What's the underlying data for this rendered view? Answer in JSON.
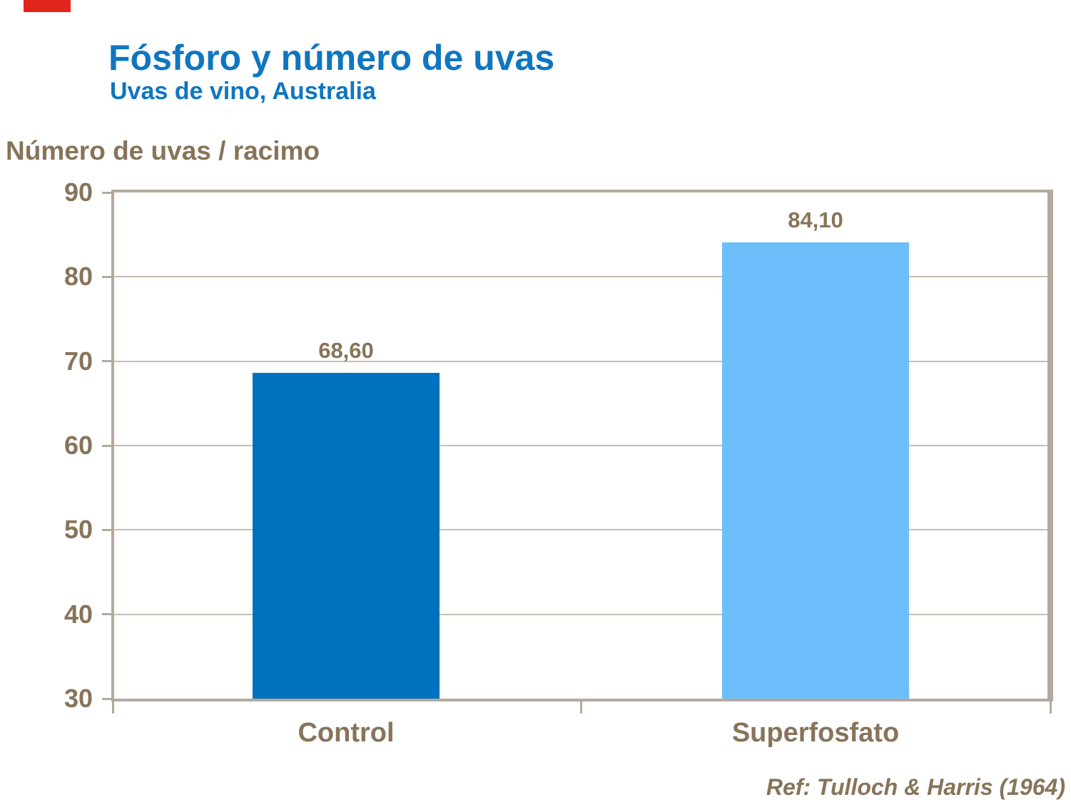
{
  "header": {
    "title": "Fósforo y número de uvas",
    "subtitle": "Uvas de vino, Australia"
  },
  "footer": {
    "reference": "Ref: Tulloch & Harris (1964)"
  },
  "chart_data": {
    "type": "bar",
    "title": "Fósforo y número de uvas",
    "subtitle": "Uvas de vino, Australia",
    "ylabel": "Número de uvas / racimo",
    "xlabel": "",
    "categories": [
      "Control",
      "Superfosfato"
    ],
    "values": [
      68.6,
      84.1
    ],
    "value_labels": [
      "68,60",
      "84,10"
    ],
    "bar_colors": [
      "#0071be",
      "#6cbefb"
    ],
    "ylim": [
      30,
      90
    ],
    "yticks": [
      30,
      40,
      50,
      60,
      70,
      80,
      90
    ],
    "grid": true,
    "legend": false,
    "annotation": "Ref: Tulloch & Harris (1964)"
  },
  "colors": {
    "title_blue": "#0f76c0",
    "text_brown": "#877459",
    "axis_frame": "#b3a99e",
    "gridline": "#c7beb2",
    "bar_control": "#0071be",
    "bar_superfosfato": "#6cbefb",
    "red_marker": "#e2251c",
    "background": "#ffffff"
  }
}
